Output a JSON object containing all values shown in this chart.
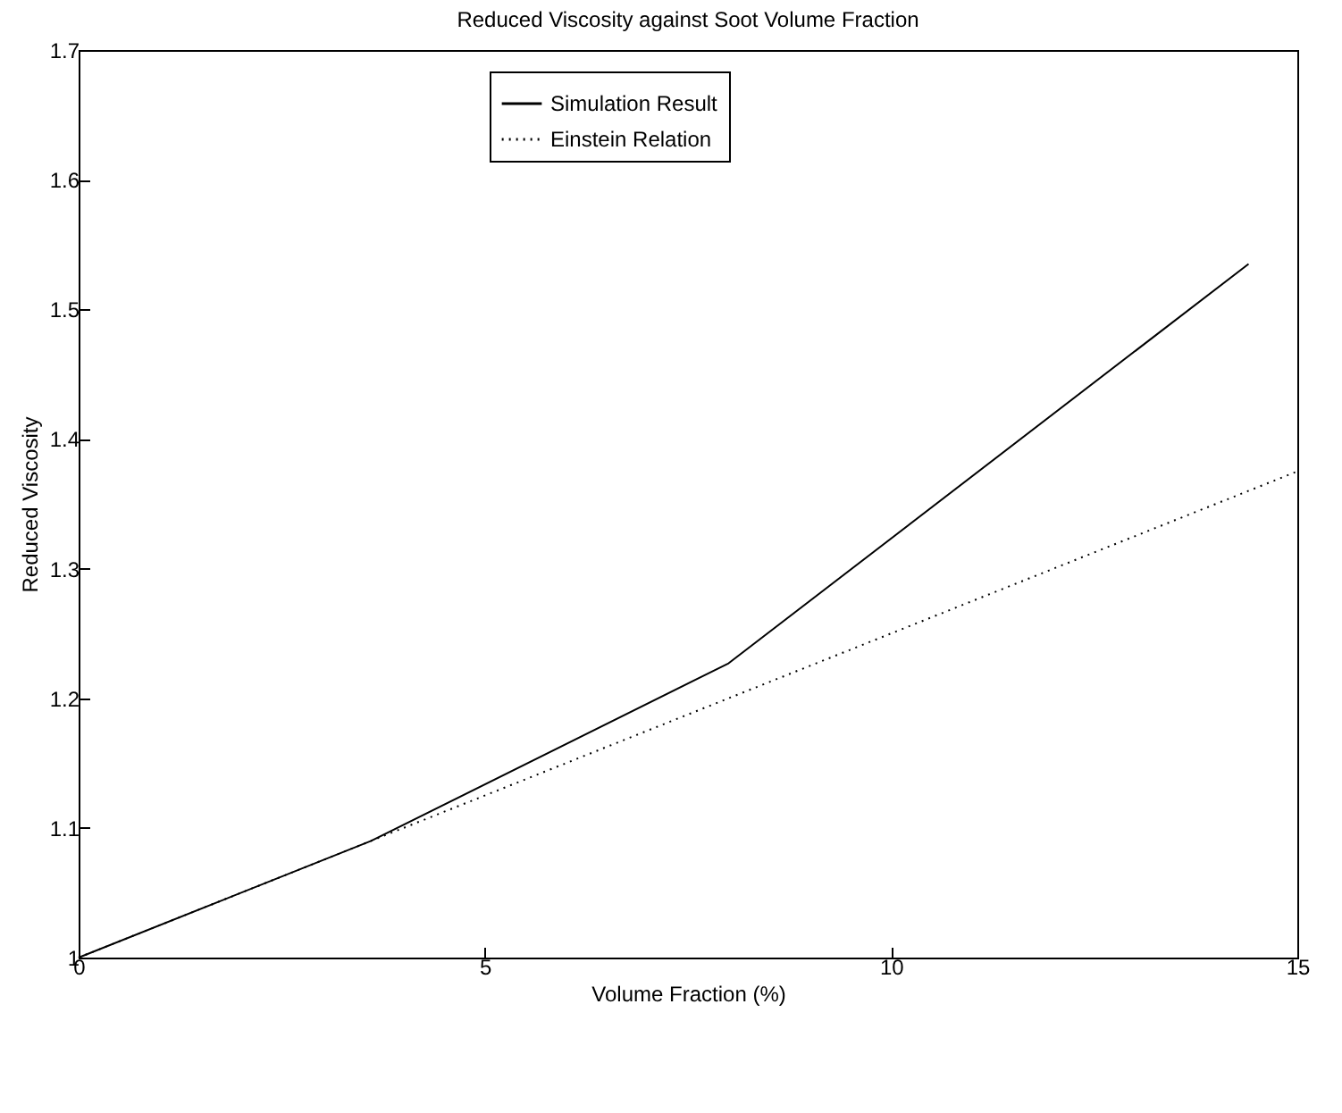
{
  "chart_data": {
    "type": "line",
    "title": "Reduced Viscosity against Soot Volume Fraction",
    "xlabel": "Volume Fraction (%)",
    "ylabel": "Reduced Viscosity",
    "xlim": [
      0,
      15
    ],
    "xticks": [
      0,
      5,
      10,
      15
    ],
    "ylim": [
      1,
      1.7
    ],
    "yticks": [
      1,
      1.1,
      1.2,
      1.3,
      1.4,
      1.5,
      1.6,
      1.7
    ],
    "grid": false,
    "legend": "top",
    "marker": "none",
    "series": [
      {
        "name": "Simulation Result",
        "color": "#000000",
        "line_style": "solid",
        "x": [
          0,
          3.6,
          8,
          14.4
        ],
        "values": [
          1,
          1.09,
          1.227,
          1.535
        ]
      },
      {
        "name": "Einstein Relation",
        "color": "#000000",
        "line_style": "dotted",
        "x": [
          0,
          15
        ],
        "values": [
          1,
          1.375
        ]
      }
    ]
  }
}
